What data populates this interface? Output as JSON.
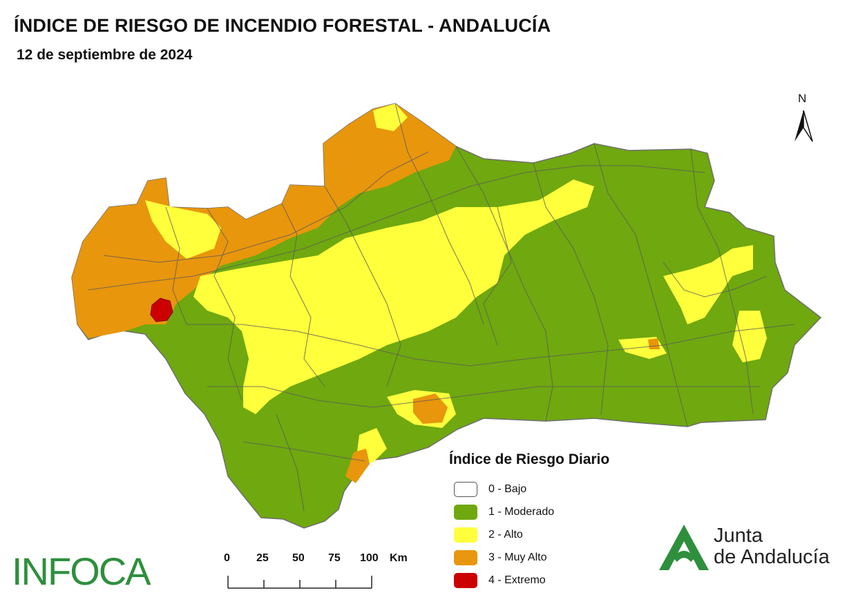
{
  "header": {
    "title": "ÍNDICE DE RIESGO DE INCENDIO FORESTAL - ANDALUCÍA",
    "date": "12 de septiembre de 2024"
  },
  "north_arrow": {
    "label": "N"
  },
  "legend": {
    "title": "Índice de Riesgo Diario",
    "items": [
      {
        "label": "0 - Bajo",
        "color": "#ffffff"
      },
      {
        "label": "1 - Moderado",
        "color": "#6fa80f"
      },
      {
        "label": "2 - Alto",
        "color": "#ffff3c"
      },
      {
        "label": "3 - Muy Alto",
        "color": "#e8960c"
      },
      {
        "label": "4 - Extremo",
        "color": "#cc0000"
      }
    ]
  },
  "scale": {
    "labels": [
      "0",
      "25",
      "50",
      "75",
      "100"
    ],
    "unit": "Km"
  },
  "logos": {
    "infoca": "INFOCA",
    "junta_line1": "Junta",
    "junta_line2": "de Andalucía"
  },
  "colors": {
    "moderado": "#6fa80f",
    "alto": "#ffff3c",
    "muy_alto": "#e8960c",
    "extremo": "#cc0000",
    "border": "#5a5a5a",
    "brand_green": "#2e8f3c"
  }
}
